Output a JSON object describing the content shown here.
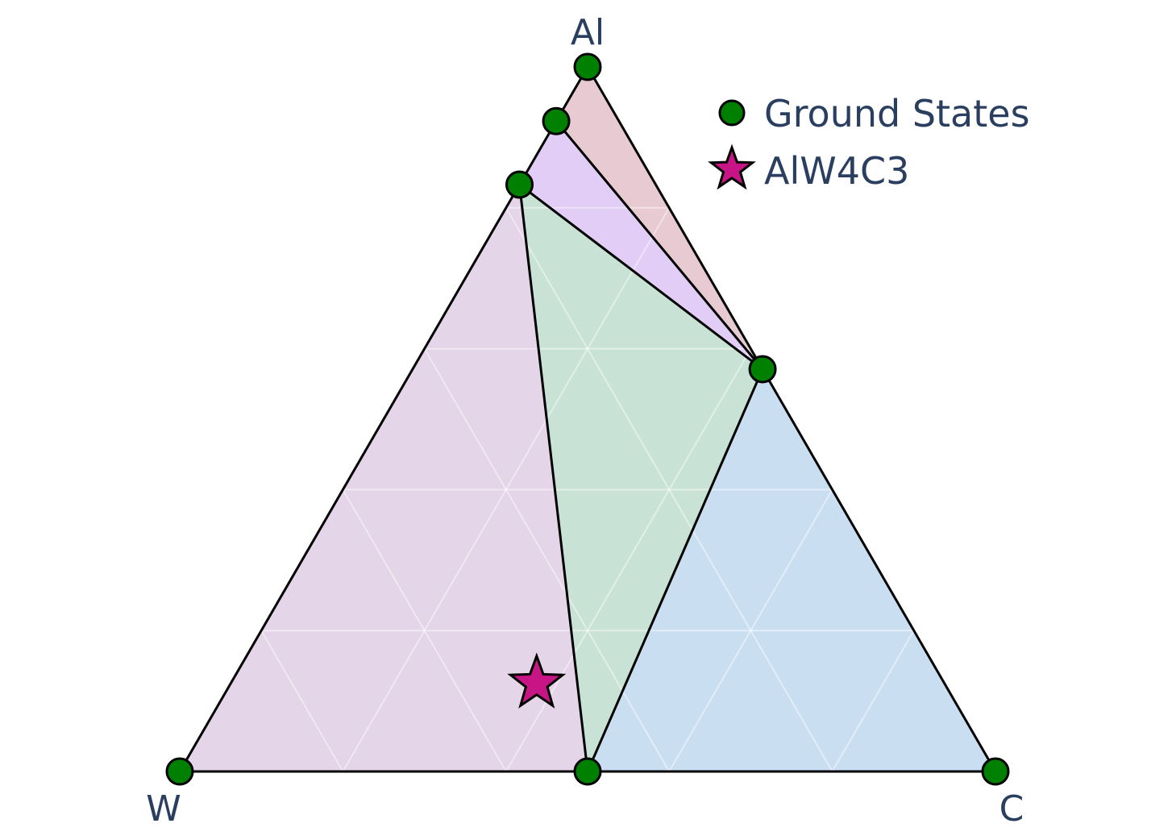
{
  "chart_data": {
    "type": "scatter",
    "subtype": "ternary-phase-diagram",
    "axes": {
      "top": "Al",
      "left": "W",
      "right": "C"
    },
    "grid": true,
    "legend_position": "top-right",
    "legend": [
      {
        "label": "Ground States",
        "marker": "circle",
        "color": "#008000"
      },
      {
        "label": "AlW4C3",
        "marker": "star",
        "color": "#c71585"
      }
    ],
    "series": [
      {
        "name": "Ground States",
        "points": [
          {
            "Al": 1.0,
            "W": 0.0,
            "C": 0.0
          },
          {
            "Al": 0.0,
            "W": 1.0,
            "C": 0.0
          },
          {
            "Al": 0.0,
            "W": 0.0,
            "C": 1.0
          },
          {
            "Al": 0.0,
            "W": 0.5,
            "C": 0.5
          },
          {
            "Al": 0.571,
            "W": 0.0,
            "C": 0.429
          },
          {
            "Al": 0.923,
            "W": 0.077,
            "C": 0.0
          },
          {
            "Al": 0.833,
            "W": 0.167,
            "C": 0.0
          }
        ]
      },
      {
        "name": "AlW4C3",
        "points": [
          {
            "Al": 0.125,
            "W": 0.5,
            "C": 0.375
          }
        ]
      }
    ],
    "regions": [
      {
        "vertices": [
          [
            0.0,
            1.0,
            0.0
          ],
          [
            0.833,
            0.167,
            0.0
          ],
          [
            0.0,
            0.5,
            0.5
          ]
        ],
        "color": "#e4d5e8"
      },
      {
        "vertices": [
          [
            0.833,
            0.167,
            0.0
          ],
          [
            0.571,
            0.0,
            0.429
          ],
          [
            0.0,
            0.5,
            0.5
          ]
        ],
        "color": "#c9e2d6"
      },
      {
        "vertices": [
          [
            0.571,
            0.0,
            0.429
          ],
          [
            0.0,
            0.0,
            1.0
          ],
          [
            0.0,
            0.5,
            0.5
          ]
        ],
        "color": "#cadef2"
      },
      {
        "vertices": [
          [
            0.833,
            0.167,
            0.0
          ],
          [
            0.923,
            0.077,
            0.0
          ],
          [
            0.571,
            0.0,
            0.429
          ]
        ],
        "color": "#e2cdf6"
      },
      {
        "vertices": [
          [
            0.923,
            0.077,
            0.0
          ],
          [
            1.0,
            0.0,
            0.0
          ],
          [
            0.571,
            0.0,
            0.429
          ]
        ],
        "color": "#e8cbd2"
      }
    ]
  }
}
